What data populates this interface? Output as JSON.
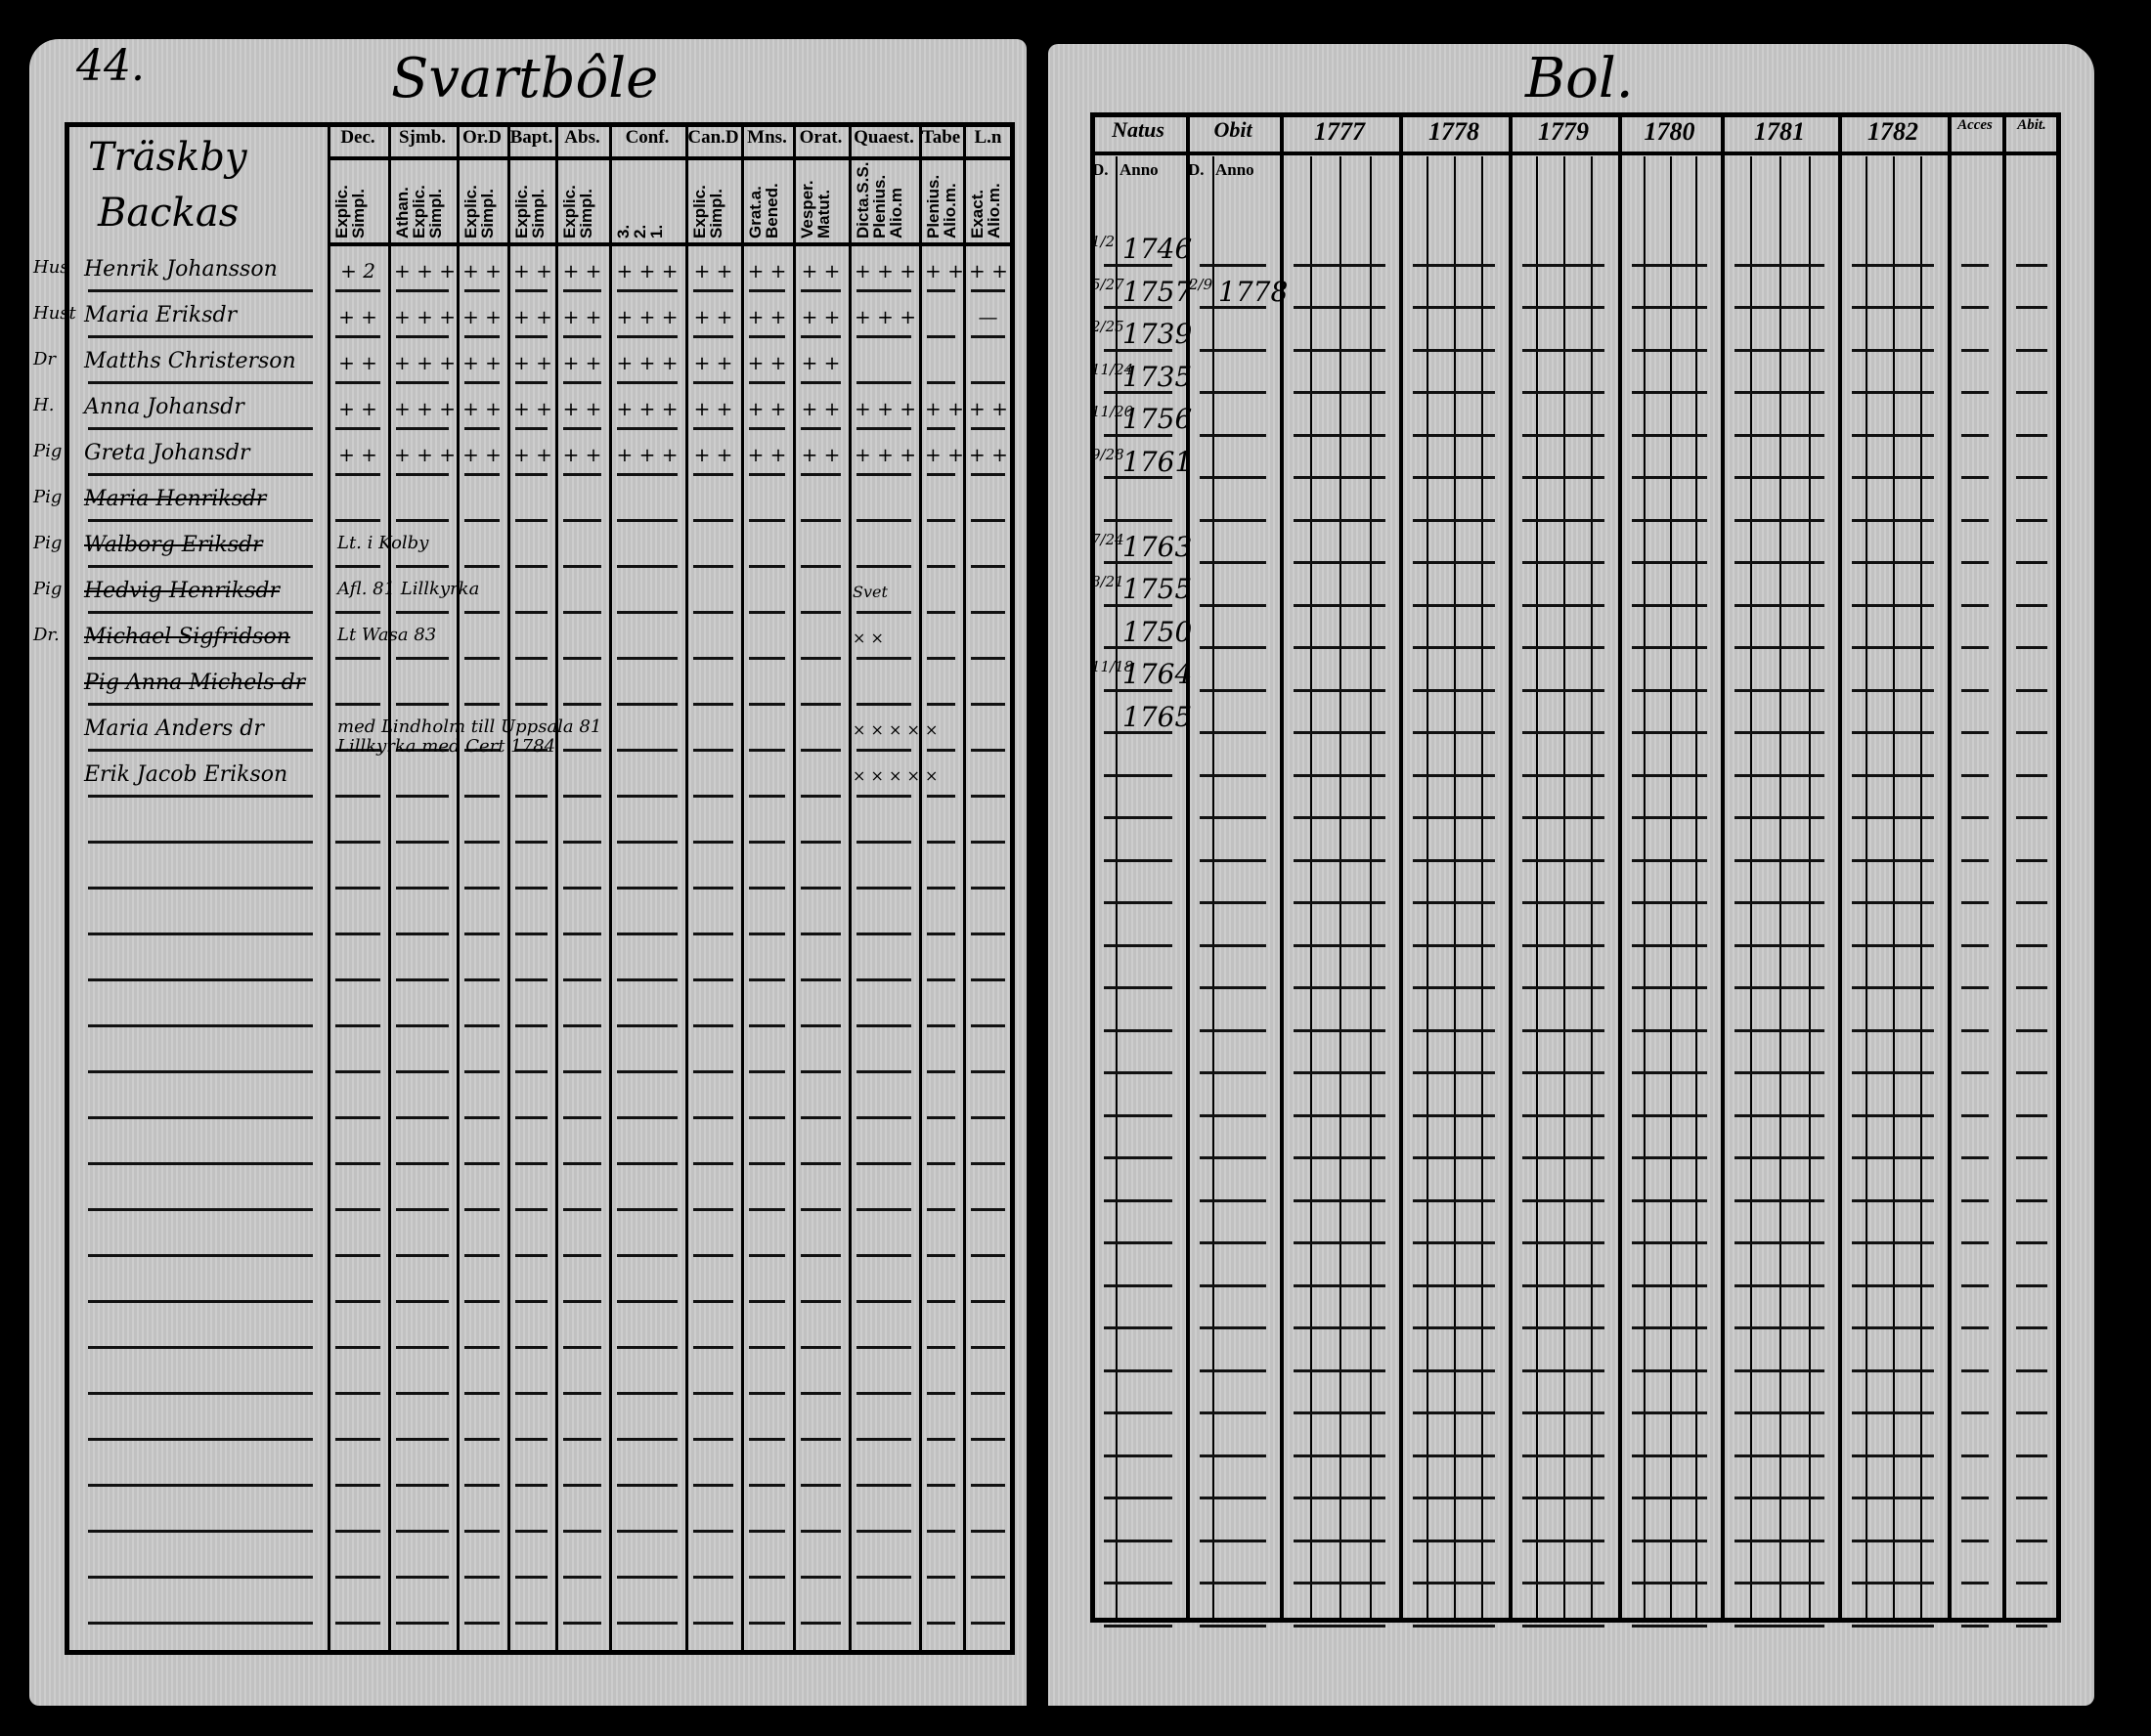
{
  "left_page": {
    "page_number": "44.",
    "title": "Svartbôle",
    "name_header": [
      "Träskby",
      "Backas"
    ],
    "columns": [
      {
        "label": "Dec.",
        "sub": "Explic.\nSimpl."
      },
      {
        "label": "Sjmb.",
        "sub": "Athan.\nExplic.\nSimpl."
      },
      {
        "label": "Or.D",
        "sub": "Explic.\nSimpl."
      },
      {
        "label": "Bapt.",
        "sub": "Explic.\nSimpl."
      },
      {
        "label": "Abs.",
        "sub": "Explic.\nSimpl."
      },
      {
        "label": "Conf.",
        "sub": "3.\n2.\n1."
      },
      {
        "label": "Can.D",
        "sub": "Explic.\nSimpl."
      },
      {
        "label": "Mns.",
        "sub": "Grat.a.\nBened."
      },
      {
        "label": "Orat.",
        "sub": "Vesper.\nMatut."
      },
      {
        "label": "Quaest.",
        "sub": "Dicta.S.S.\nPlenius.\nAlio.m"
      },
      {
        "label": "Tabe",
        "sub": "Plenius.\nAlio.m."
      },
      {
        "label": "L.n",
        "sub": "Exact.\nAlio.m."
      }
    ],
    "rows": [
      {
        "margin": "Hus",
        "name": "Henrik Johansson",
        "marks": [
          "+ 2",
          "+ + +",
          "+ +",
          "+ +",
          "+ +",
          "+ + +",
          "+ +",
          "+ +",
          "+ +",
          "+ + +",
          "+ +",
          "+ +"
        ]
      },
      {
        "margin": "Hust",
        "name": "Maria Eriksdr",
        "marks": [
          "+ +",
          "+ + +",
          "+ +",
          "+ +",
          "+ +",
          "+ + +",
          "+ +",
          "+ +",
          "+ +",
          "+ + +",
          "",
          "—"
        ]
      },
      {
        "margin": "Dr",
        "name": "Matths Christerson",
        "marks": [
          "+ +",
          "+ + +",
          "+ +",
          "+ +",
          "+ +",
          "+ + +",
          "+ +",
          "+ +",
          "+ +",
          "",
          "",
          ""
        ]
      },
      {
        "margin": "H.",
        "name": "Anna Johansdr",
        "marks": [
          "+ +",
          "+ + +",
          "+ +",
          "+ +",
          "+ +",
          "+ + +",
          "+ +",
          "+ +",
          "+ +",
          "+ + +",
          "+ +",
          "+ +"
        ]
      },
      {
        "margin": "Pig",
        "name": "Greta Johansdr",
        "marks": [
          "+ +",
          "+ + +",
          "+ +",
          "+ +",
          "+ +",
          "+ + +",
          "+ +",
          "+ +",
          "+ +",
          "+ + +",
          "+ +",
          "+ +"
        ]
      },
      {
        "margin": "Pig",
        "name": "Maria Henriksdr",
        "marks": [],
        "note": ""
      },
      {
        "margin": "Pig",
        "name": "Walborg Eriksdr",
        "marks": [],
        "note": "Lt. i Kolby"
      },
      {
        "margin": "Pig",
        "name": "Hedvig Henriksdr",
        "marks": [],
        "note": "Afl. 81 Lillkyrka",
        "quaest": "Svet"
      },
      {
        "margin": "Dr.",
        "name": "Michael Sigfridson",
        "marks": [],
        "note": "Lt Wasa 83",
        "quaest": "× ×"
      },
      {
        "margin": "",
        "name": "Pig Anna Michels dr",
        "marks": [],
        "note": ""
      },
      {
        "margin": "",
        "name": "Maria Anders dr",
        "marks": [],
        "note": "med Lindholm till Uppsala 81",
        "note2": "Lillkyrka med Cert 1784",
        "quaest": "× × × × ×"
      },
      {
        "margin": "",
        "name": "Erik Jacob Erikson",
        "marks": [],
        "note": "",
        "quaest": "× × × × ×"
      }
    ]
  },
  "right_page": {
    "title": "Bol.",
    "columns": [
      {
        "label": "Natus",
        "sub": [
          "D.",
          "Anno"
        ]
      },
      {
        "label": "Obit",
        "sub": [
          "D.",
          "Anno"
        ]
      },
      {
        "label": "1777"
      },
      {
        "label": "1778"
      },
      {
        "label": "1779"
      },
      {
        "label": "1780"
      },
      {
        "label": "1781"
      },
      {
        "label": "1782"
      },
      {
        "label": "Acces"
      },
      {
        "label": "Abit."
      }
    ],
    "rows": [
      {
        "natus_d": "1/2",
        "natus_anno": "1746",
        "obit_d": "",
        "obit_anno": ""
      },
      {
        "natus_d": "5/27",
        "natus_anno": "1757",
        "obit_d": "2/9",
        "obit_anno": "1778"
      },
      {
        "natus_d": "2/25",
        "natus_anno": "1739",
        "obit_d": "",
        "obit_anno": ""
      },
      {
        "natus_d": "11/24",
        "natus_anno": "1735",
        "obit_d": "",
        "obit_anno": ""
      },
      {
        "natus_d": "11/20",
        "natus_anno": "1756",
        "obit_d": "",
        "obit_anno": ""
      },
      {
        "natus_d": "9/28",
        "natus_anno": "1761",
        "obit_d": "",
        "obit_anno": ""
      },
      {
        "natus_d": "",
        "natus_anno": "",
        "obit_d": "",
        "obit_anno": ""
      },
      {
        "natus_d": "7/24",
        "natus_anno": "1763",
        "obit_d": "",
        "obit_anno": ""
      },
      {
        "natus_d": "8/21",
        "natus_anno": "1755",
        "obit_d": "",
        "obit_anno": ""
      },
      {
        "natus_d": "",
        "natus_anno": "1750",
        "obit_d": "",
        "obit_anno": ""
      },
      {
        "natus_d": "11/18",
        "natus_anno": "1764",
        "obit_d": "",
        "obit_anno": ""
      },
      {
        "natus_d": "",
        "natus_anno": "1765",
        "obit_d": "",
        "obit_anno": ""
      }
    ]
  }
}
